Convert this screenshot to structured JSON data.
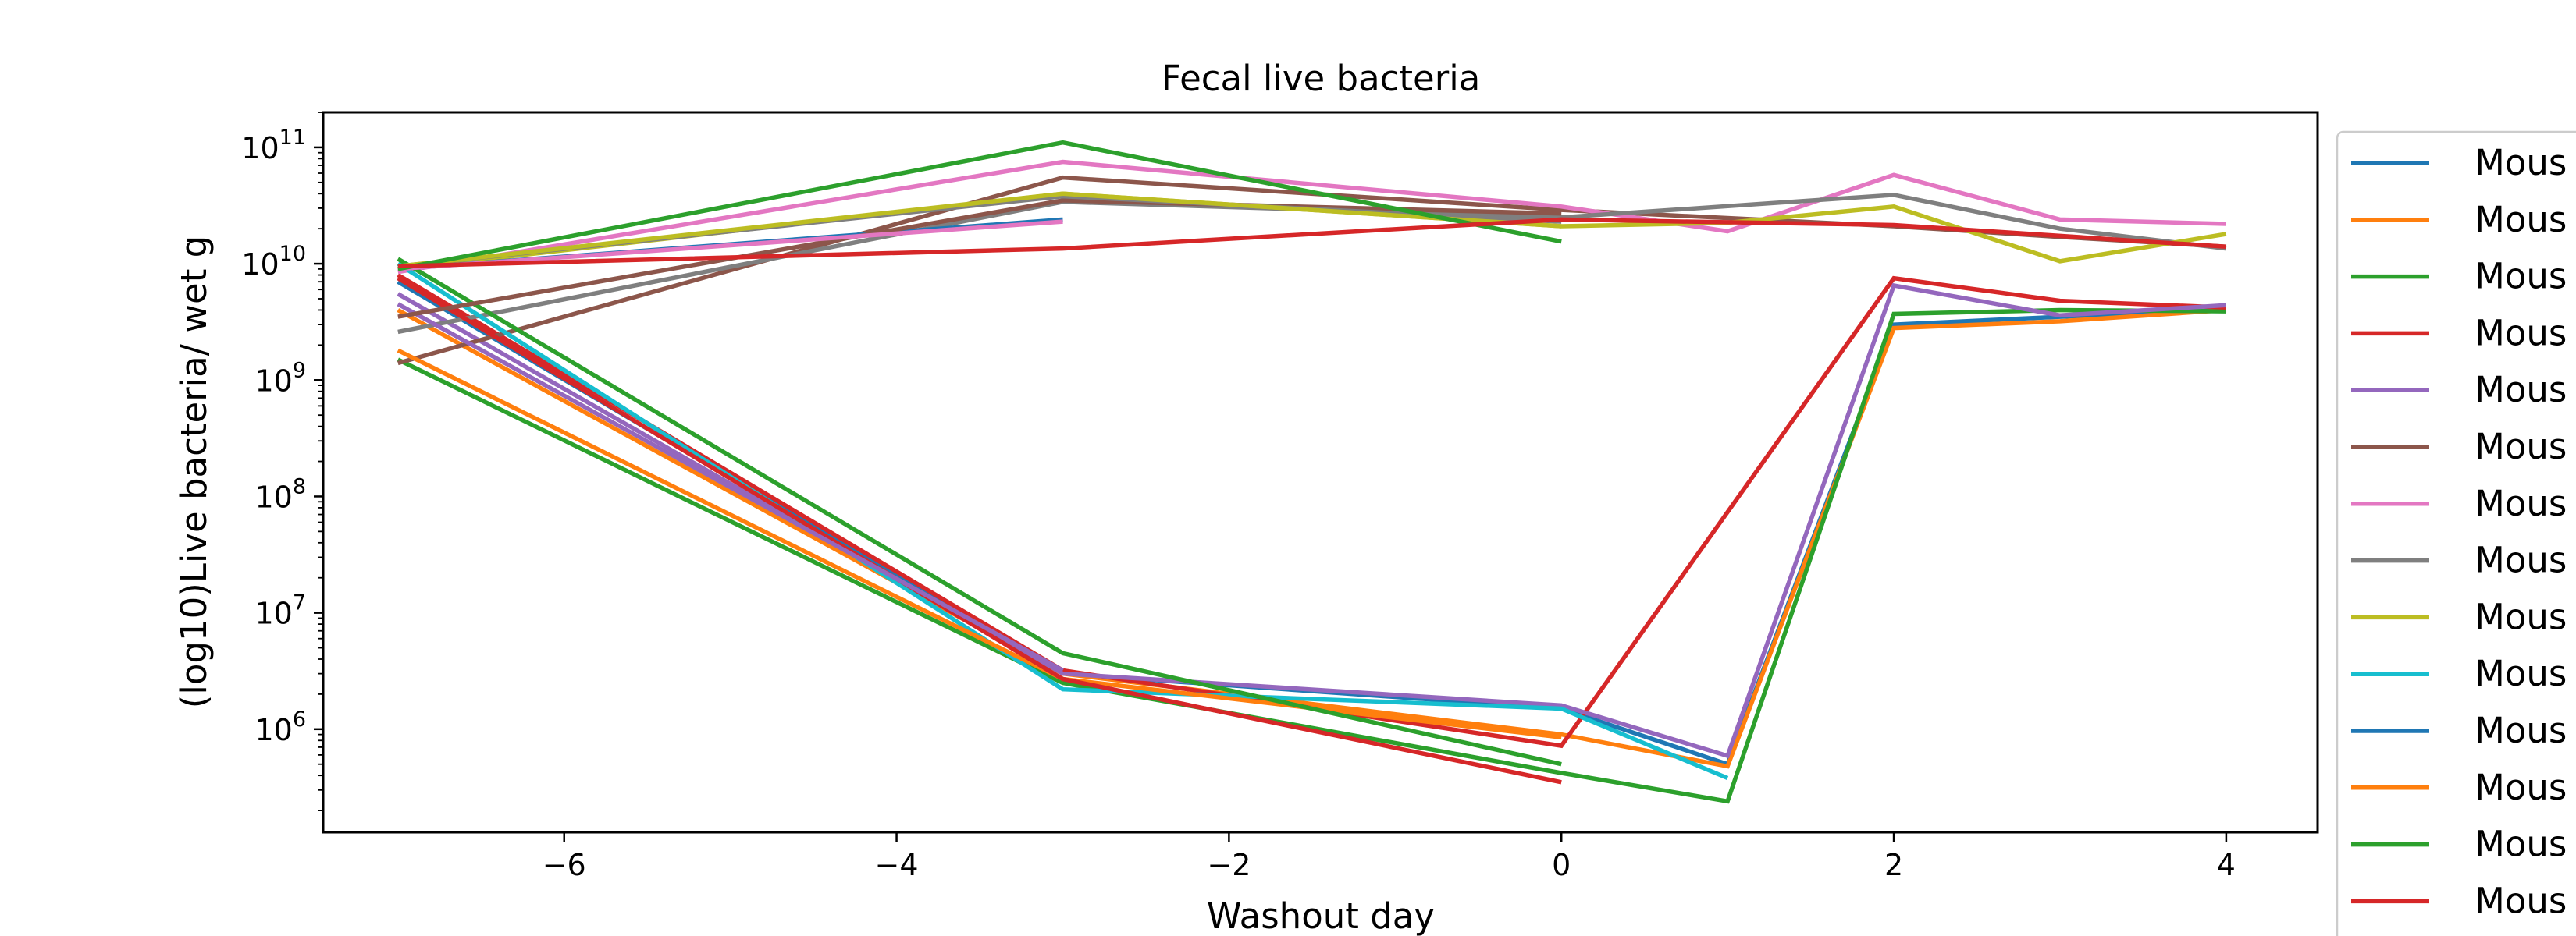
{
  "chart_data": {
    "type": "line",
    "title": "Fecal live bacteria",
    "xlabel": "Washout day",
    "ylabel": "(log10)Live bacteria/ wet g",
    "yscale": "log",
    "xlim": [
      -7.45,
      4.55
    ],
    "ylim": [
      130000,
      200000000000
    ],
    "xticks": [
      {
        "value": -6,
        "label": "−6"
      },
      {
        "value": -4,
        "label": "−4"
      },
      {
        "value": -2,
        "label": "−2"
      },
      {
        "value": 0,
        "label": "0"
      },
      {
        "value": 2,
        "label": "2"
      },
      {
        "value": 4,
        "label": "4"
      }
    ],
    "yticks": [
      {
        "value": 1000000,
        "base": "10",
        "exp": "6"
      },
      {
        "value": 10000000,
        "base": "10",
        "exp": "7"
      },
      {
        "value": 100000000,
        "base": "10",
        "exp": "8"
      },
      {
        "value": 1000000000,
        "base": "10",
        "exp": "9"
      },
      {
        "value": 10000000000,
        "base": "10",
        "exp": "10"
      },
      {
        "value": 100000000000,
        "base": "10",
        "exp": "11"
      }
    ],
    "grid": false,
    "legend_position": "right, outside plot (clipped)",
    "legend_labels": [
      "Mous",
      "Mous",
      "Mous",
      "Mous",
      "Mous",
      "Mous",
      "Mous",
      "Mous",
      "Mous",
      "Mous",
      "Mous",
      "Mous",
      "Mous",
      "Mous"
    ],
    "series": [
      {
        "color": "#1f77b4",
        "x": [
          -7,
          -3,
          0,
          1,
          2,
          3,
          4
        ],
        "y": [
          7000000000,
          3000000,
          1500000,
          500000,
          3000000000,
          3500000000,
          4000000000
        ]
      },
      {
        "color": "#ff7f0e",
        "x": [
          -7,
          -3,
          0,
          1,
          2,
          3,
          4
        ],
        "y": [
          4000000000,
          3000000,
          900000,
          480000,
          2800000000,
          3200000000,
          4000000000
        ]
      },
      {
        "color": "#2ca02c",
        "x": [
          -7,
          -3,
          0,
          1,
          2,
          3,
          4
        ],
        "y": [
          1500000000,
          2500000,
          420000,
          240000,
          3700000000,
          4000000000,
          3900000000
        ]
      },
      {
        "color": "#d62728",
        "x": [
          -7,
          -3,
          0,
          2,
          3,
          4
        ],
        "y": [
          8000000000,
          3200000,
          720000,
          7500000000,
          4800000000,
          4200000000
        ]
      },
      {
        "color": "#9467bd",
        "x": [
          -7,
          -3,
          0,
          1,
          2,
          3,
          4
        ],
        "y": [
          5500000000,
          3000000,
          1600000,
          590000,
          6500000000,
          3600000000,
          4400000000
        ]
      },
      {
        "color": "#8c564b",
        "x": [
          -7,
          -3,
          0,
          2,
          3,
          4
        ],
        "y": [
          1400000000,
          55000000000,
          29000000000,
          21000000000,
          17000000000,
          14000000000
        ]
      },
      {
        "color": "#e377c2",
        "x": [
          -7,
          -3,
          0,
          1,
          2,
          3,
          4
        ],
        "y": [
          8500000000,
          75000000000,
          31000000000,
          19000000000,
          58000000000,
          24000000000,
          22000000000
        ]
      },
      {
        "color": "#7f7f7f",
        "x": [
          -7,
          -3,
          0,
          2,
          3,
          4
        ],
        "y": [
          2600000000,
          34000000000,
          25000000000,
          39000000000,
          20000000000,
          13500000000
        ]
      },
      {
        "color": "#bcbd22",
        "x": [
          -7,
          -3,
          0,
          1,
          2,
          3,
          4
        ],
        "y": [
          9000000000,
          40000000000,
          21000000000,
          22500000000,
          31000000000,
          10500000000,
          18000000000
        ]
      },
      {
        "color": "#17becf",
        "x": [
          -7,
          -3,
          0,
          1
        ],
        "y": [
          10000000000,
          2200000,
          1500000,
          380000
        ]
      },
      {
        "color": "#1f77b4",
        "x": [
          -7,
          -3
        ],
        "y": [
          9000000000,
          24000000000
        ]
      },
      {
        "color": "#ff7f0e",
        "x": [
          -7,
          -3,
          0
        ],
        "y": [
          1800000000,
          2700000,
          850000
        ]
      },
      {
        "color": "#2ca02c",
        "x": [
          -7,
          -3,
          0
        ],
        "y": [
          11000000000,
          4500000,
          500000
        ]
      },
      {
        "color": "#d62728",
        "x": [
          -7,
          -3,
          0
        ],
        "y": [
          7500000000,
          2700000,
          350000
        ]
      },
      {
        "color": "#9467bd",
        "x": [
          -7,
          -3
        ],
        "y": [
          4500000000,
          3200000
        ]
      },
      {
        "color": "#8c564b",
        "x": [
          -7,
          -3,
          0
        ],
        "y": [
          3500000000,
          35000000000,
          27000000000
        ]
      },
      {
        "color": "#e377c2",
        "x": [
          -7,
          -3
        ],
        "y": [
          9000000000,
          23000000000
        ]
      },
      {
        "color": "#7f7f7f",
        "x": [
          -7,
          -3,
          0
        ],
        "y": [
          9500000000,
          38000000000,
          23000000000
        ]
      },
      {
        "color": "#bcbd22",
        "x": [
          -7,
          -3,
          0
        ],
        "y": [
          9500000000,
          40000000000,
          21000000000
        ]
      },
      {
        "color": "#2ca02c",
        "x": [
          -7,
          -3,
          0
        ],
        "y": [
          9000000000,
          110000000000,
          15500000000
        ]
      },
      {
        "color": "#d62728",
        "x": [
          -7,
          -3,
          0,
          2,
          4
        ],
        "y": [
          9500000000,
          13500000000,
          24000000000,
          21500000000,
          14000000000
        ]
      }
    ]
  }
}
